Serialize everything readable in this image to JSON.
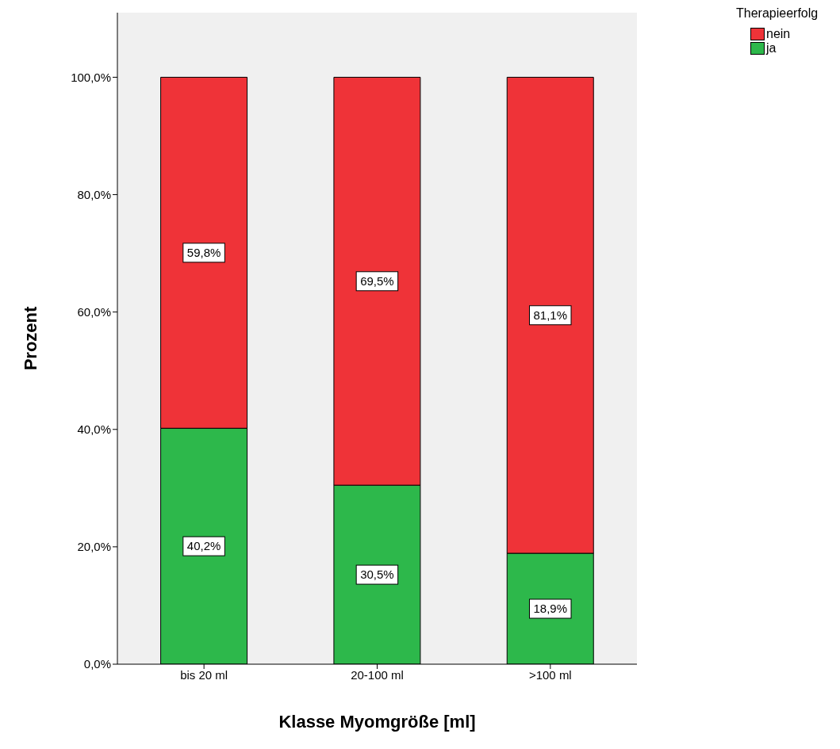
{
  "chart_data": {
    "type": "bar",
    "stacked": true,
    "xlabel": "Klasse Myomgröße [ml]",
    "ylabel": "Prozent",
    "legend_title": "Therapieerfolg",
    "legend": "top right",
    "grid": false,
    "categories": [
      "bis 20 ml",
      "20-100 ml",
      ">100 ml"
    ],
    "ylim": [
      0,
      111
    ],
    "yticks": [
      {
        "value": 0,
        "label": "0,0%"
      },
      {
        "value": 20,
        "label": "20,0%"
      },
      {
        "value": 40,
        "label": "40,0%"
      },
      {
        "value": 60,
        "label": "60,0%"
      },
      {
        "value": 80,
        "label": "80,0%"
      },
      {
        "value": 100,
        "label": "100,0%"
      }
    ],
    "series": [
      {
        "name": "ja",
        "color": "#2db84b",
        "values": [
          40.2,
          30.5,
          18.9
        ],
        "value_labels": [
          "40,2%",
          "30,5%",
          "18,9%"
        ]
      },
      {
        "name": "nein",
        "color": "#ef3338",
        "values": [
          59.8,
          69.5,
          81.1
        ],
        "value_labels": [
          "59,8%",
          "69,5%",
          "81,1%"
        ]
      }
    ]
  }
}
